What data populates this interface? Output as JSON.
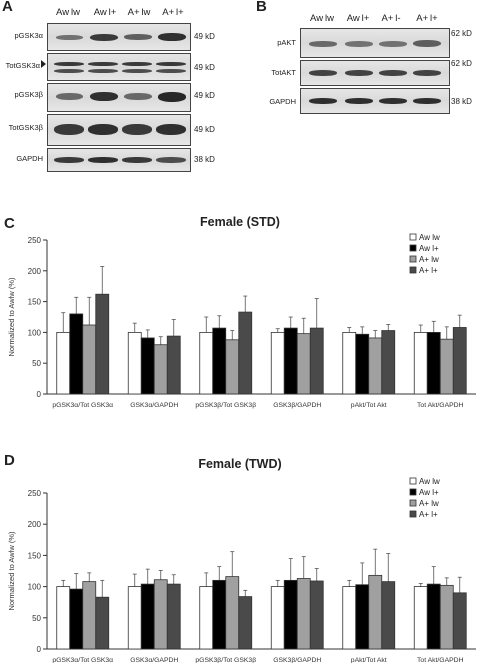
{
  "blot_a": {
    "letter": "A",
    "columns": [
      "Aw lw",
      "Aw l+",
      "A+ lw",
      "A+ l+"
    ],
    "rows": [
      {
        "label": "pGSK3α",
        "kd": "49 kD",
        "marker": false
      },
      {
        "label": "TotGSK3α",
        "kd": "49 kD",
        "marker": true
      },
      {
        "label": "pGSK3β",
        "kd": "49 kD",
        "marker": false
      },
      {
        "label": "TotGSK3β",
        "kd": "49 kD",
        "marker": false
      },
      {
        "label": "GAPDH",
        "kd": "38 kD",
        "marker": false
      }
    ]
  },
  "blot_b": {
    "letter": "B",
    "columns": [
      "Aw lw",
      "Aw l+",
      "A+ l-",
      "A+ l+"
    ],
    "rows": [
      {
        "label": "pAKT",
        "kd": "62 kD"
      },
      {
        "label": "TotAKT",
        "kd": "62 kD"
      },
      {
        "label": "GAPDH",
        "kd": "38 kD"
      }
    ]
  },
  "chart_data": [
    {
      "letter": "C",
      "type": "bar",
      "title": "Female (STD)",
      "ylabel": "Normalized to Awlw (%)",
      "xlabel": "",
      "ylim": [
        0,
        250
      ],
      "yticks": [
        "0",
        "50",
        "100",
        "150",
        "200",
        "250"
      ],
      "grid": false,
      "legend_position": "top-right",
      "categories": [
        "pGSK3α/Tot GSK3α",
        "GSK3α/GAPDH",
        "pGSK3β/Tot GSK3β",
        "GSK3β/GAPDH",
        "pAkt/Tot Akt",
        "Tot Akt/GAPDH"
      ],
      "series": [
        {
          "name": "Aw lw",
          "color": "#ffffff",
          "values": [
            100,
            100,
            100,
            100,
            100,
            100
          ],
          "errors": [
            32,
            15,
            25,
            6,
            8,
            12
          ]
        },
        {
          "name": "Aw l+",
          "color": "#000000",
          "values": [
            130,
            91,
            107,
            107,
            97,
            100
          ],
          "errors": [
            27,
            13,
            20,
            18,
            12,
            18
          ]
        },
        {
          "name": "A+ lw",
          "color": "#a0a0a0",
          "values": [
            112,
            80,
            88,
            98,
            91,
            89
          ],
          "errors": [
            45,
            13,
            15,
            25,
            12,
            20
          ]
        },
        {
          "name": "A+ l+",
          "color": "#4a4a4a",
          "values": [
            162,
            94,
            133,
            107,
            103,
            108
          ],
          "errors": [
            45,
            27,
            26,
            48,
            10,
            20
          ]
        }
      ]
    },
    {
      "letter": "D",
      "type": "bar",
      "title": "Female (TWD)",
      "ylabel": "Normalized to Awlw (%)",
      "xlabel": "",
      "ylim": [
        0,
        250
      ],
      "yticks": [
        "0",
        "50",
        "100",
        "150",
        "200",
        "250"
      ],
      "grid": false,
      "legend_position": "top-right",
      "categories": [
        "pGSK3α/Tot GSK3α",
        "GSK3α/GAPDH",
        "pGSK3β/Tot GSK3β",
        "GSK3β/GAPDH",
        "pAkt/Tot Akt",
        "Tot Akt/GAPDH"
      ],
      "series": [
        {
          "name": "Aw lw",
          "color": "#ffffff",
          "values": [
            100,
            100,
            100,
            100,
            100,
            100
          ],
          "errors": [
            10,
            20,
            22,
            10,
            10,
            5
          ]
        },
        {
          "name": "Aw l+",
          "color": "#000000",
          "values": [
            96,
            104,
            110,
            110,
            103,
            104
          ],
          "errors": [
            25,
            24,
            22,
            35,
            35,
            28
          ]
        },
        {
          "name": "A+ lw",
          "color": "#a0a0a0",
          "values": [
            108,
            111,
            116,
            113,
            118,
            102
          ],
          "errors": [
            14,
            15,
            40,
            35,
            42,
            12
          ]
        },
        {
          "name": "A+ l+",
          "color": "#4a4a4a",
          "values": [
            83,
            104,
            84,
            109,
            108,
            90
          ],
          "errors": [
            27,
            15,
            10,
            20,
            45,
            25
          ]
        }
      ]
    }
  ]
}
